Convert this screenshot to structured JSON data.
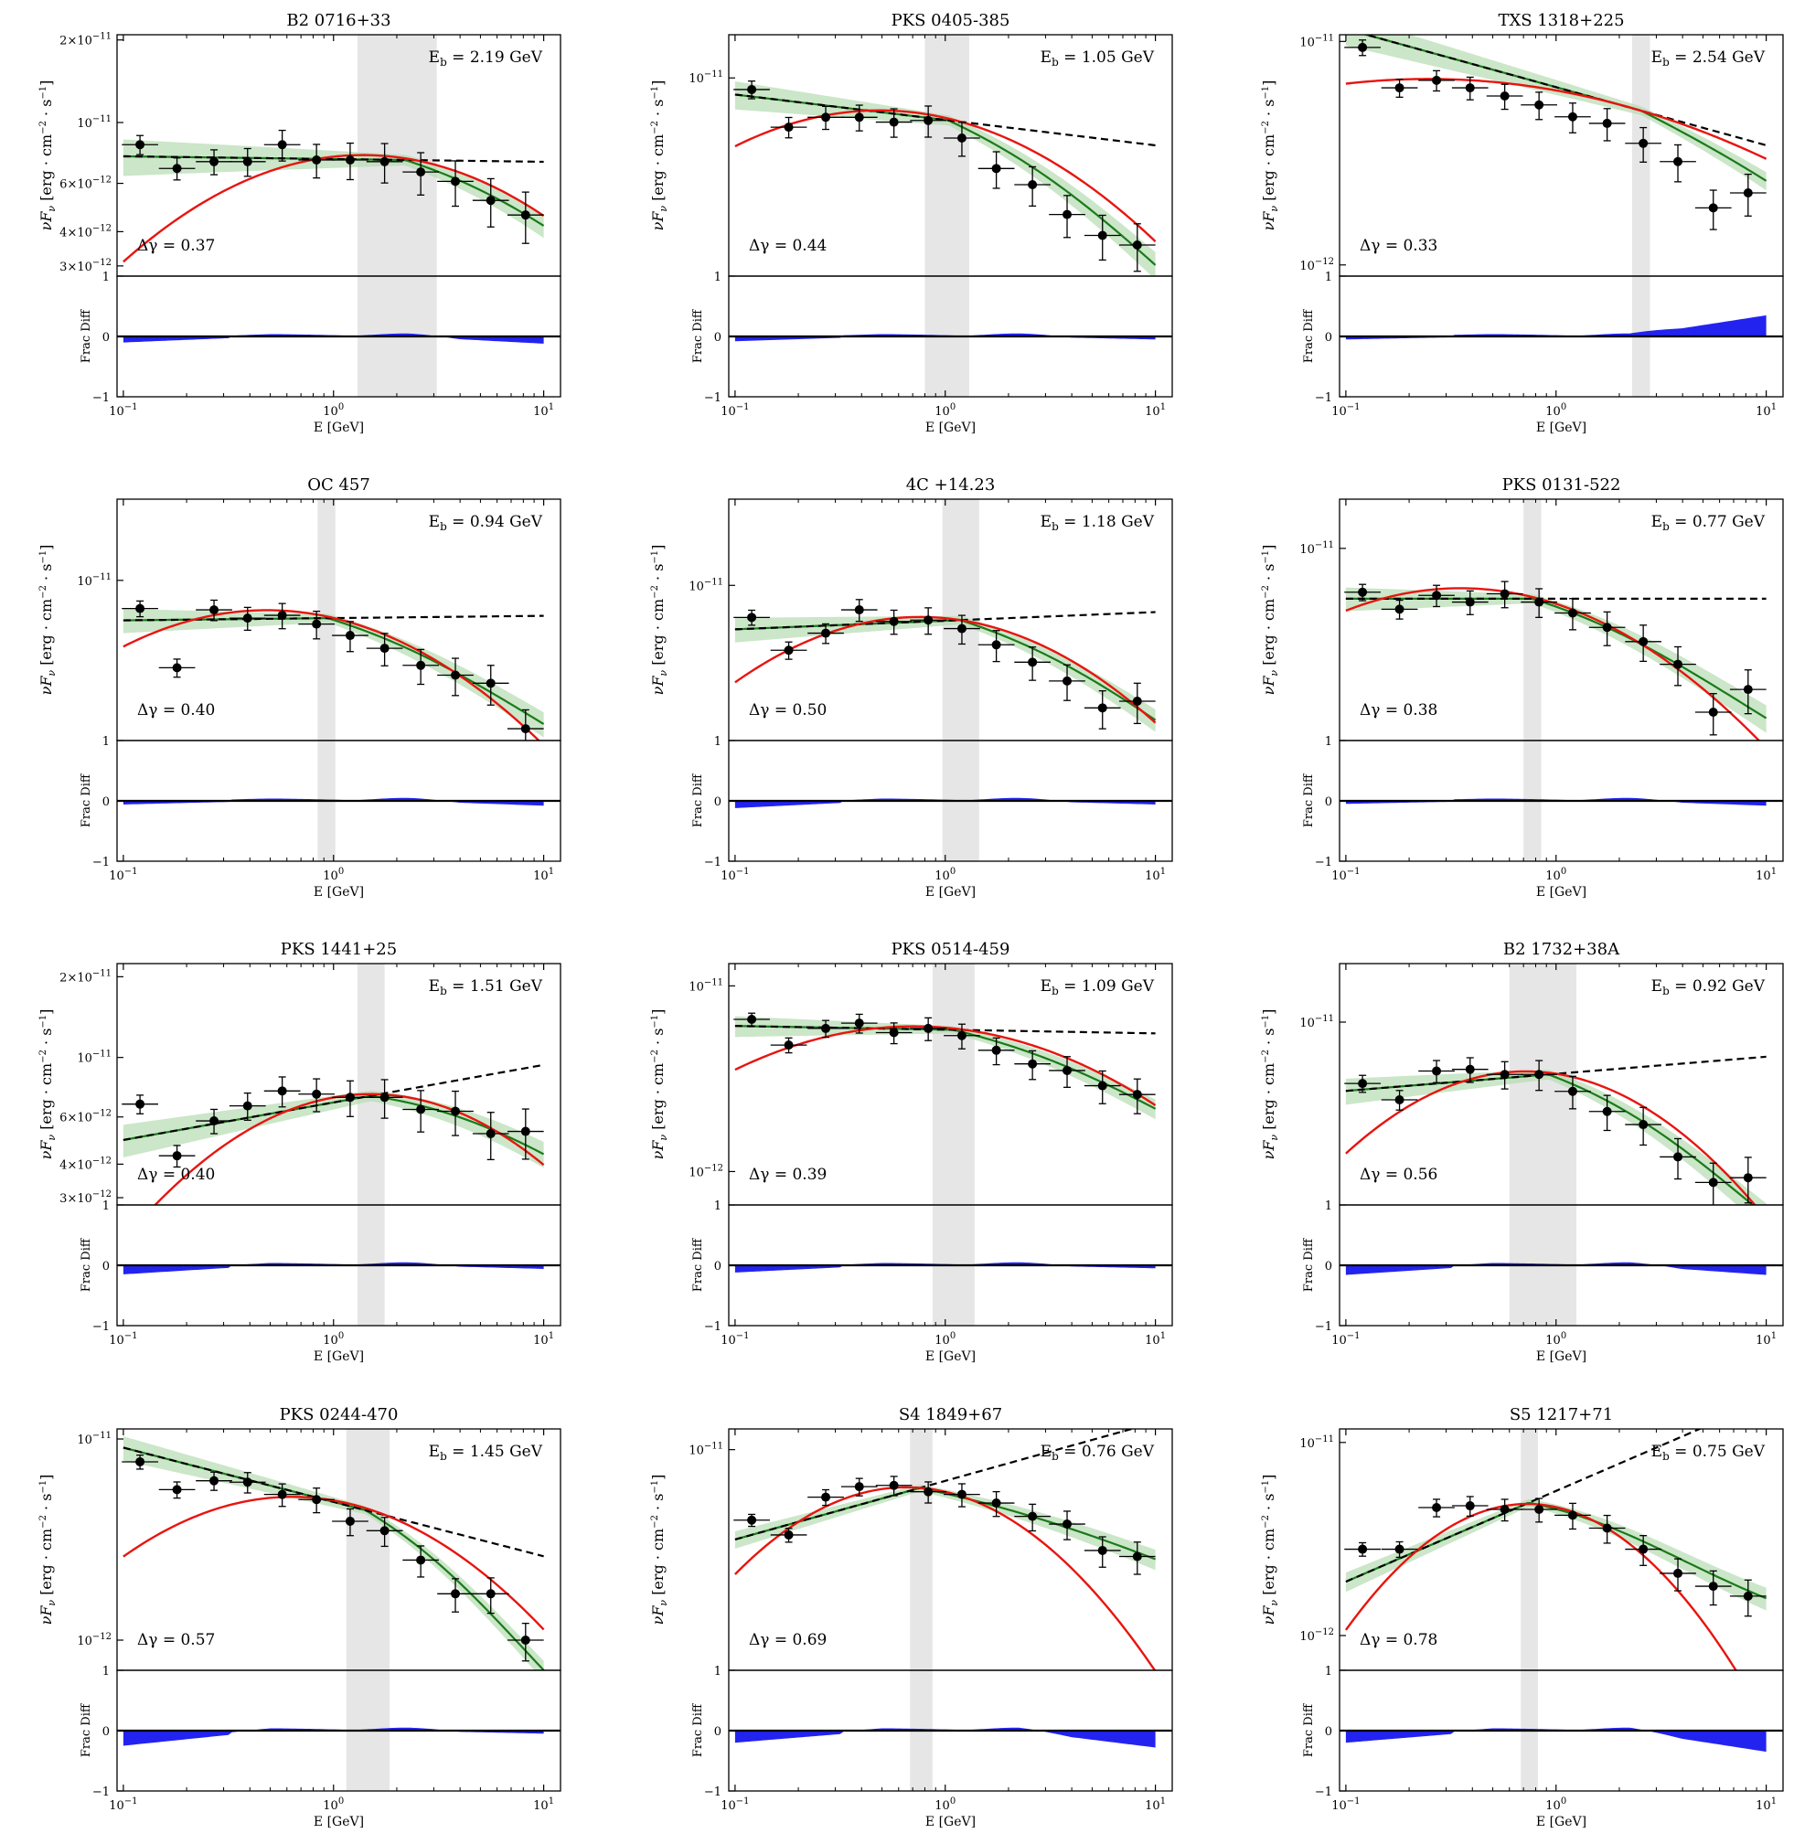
{
  "figure": {
    "x_label": "E [GeV]",
    "y_label_top": "νF",
    "y_label_sub": "ν",
    "y_label_unit": "[erg · cm",
    "y_label_exp2": "−2",
    "y_label_mid": " · s",
    "y_label_exp1": "−1",
    "y_label_close": "]",
    "resid_label": "Frac Diff",
    "eb_prefix": "E",
    "eb_sub": "b",
    "dg_prefix": "Δγ = "
  },
  "chart_data": [
    {
      "type": "line",
      "title": "B2 0716+33",
      "Eb": "2.19 GeV",
      "dgamma": "0.37",
      "eb_val": 2.19,
      "band": [
        1.3,
        3.1
      ],
      "ylog": [
        -11.56,
        -10.68
      ],
      "ylabels": [
        {
          "t": "2×10",
          "e": "−11",
          "v": 2e-11
        },
        {
          "t": "10",
          "e": "−11",
          "v": 1e-11
        },
        {
          "t": "6×10",
          "e": "−12",
          "v": 6e-12
        },
        {
          "t": "4×10",
          "e": "−12",
          "v": 4e-12
        },
        {
          "t": "3×10",
          "e": "−12",
          "v": 3e-12
        }
      ],
      "pts": [
        [
          0.12,
          8.3e-12
        ],
        [
          0.18,
          6.8e-12
        ],
        [
          0.27,
          7.2e-12
        ],
        [
          0.39,
          7.2e-12
        ],
        [
          0.57,
          8.3e-12
        ],
        [
          0.83,
          7.3e-12
        ],
        [
          1.2,
          7.3e-12
        ],
        [
          1.75,
          7.2e-12
        ],
        [
          2.6,
          6.6e-12
        ],
        [
          3.8,
          6.1e-12
        ],
        [
          5.6,
          5.2e-12
        ],
        [
          8.2,
          4.6e-12
        ]
      ],
      "plA": 7.3e-12,
      "plG": 0.01,
      "red": [
        7.4e-12,
        0.12,
        0.13
      ],
      "green": [
        7.3e-12,
        0.0,
        0.22
      ],
      "res": [
        0.1,
        0.12
      ]
    },
    {
      "type": "line",
      "title": "PKS 0405-385",
      "Eb": "1.05 GeV",
      "dgamma": "0.44",
      "eb_val": 1.05,
      "band": [
        0.8,
        1.3
      ],
      "ylog": [
        -11.78,
        -10.83
      ],
      "ylabels": [
        {
          "t": "10",
          "e": "−11",
          "v": 1e-11
        }
      ],
      "pts": [
        [
          0.12,
          9e-12
        ],
        [
          0.18,
          6.4e-12
        ],
        [
          0.27,
          7e-12
        ],
        [
          0.39,
          7e-12
        ],
        [
          0.57,
          6.7e-12
        ],
        [
          0.83,
          6.8e-12
        ],
        [
          1.2,
          5.8e-12
        ],
        [
          1.75,
          4.4e-12
        ],
        [
          2.6,
          3.8e-12
        ],
        [
          3.8,
          2.9e-12
        ],
        [
          5.6,
          2.4e-12
        ],
        [
          8.2,
          2.2e-12
        ]
      ],
      "plA": 6.8e-12,
      "plG": 0.1,
      "red": [
        6.9e-12,
        0.2,
        0.13
      ],
      "green": [
        6.7e-12,
        0.1,
        0.25
      ],
      "res": [
        0.08,
        0.05
      ]
    },
    {
      "type": "line",
      "title": "TXS 1318+225",
      "Eb": "2.54 GeV",
      "dgamma": "0.33",
      "eb_val": 2.54,
      "band": [
        2.3,
        2.8
      ],
      "ylog": [
        -12.05,
        -10.97
      ],
      "ylabels": [
        {
          "t": "10",
          "e": "−11",
          "v": 1e-11
        },
        {
          "t": "10",
          "e": "−12",
          "v": 1e-12
        }
      ],
      "pts": [
        [
          0.12,
          9.4e-12
        ],
        [
          0.18,
          6.2e-12
        ],
        [
          0.27,
          6.7e-12
        ],
        [
          0.39,
          6.2e-12
        ],
        [
          0.57,
          5.7e-12
        ],
        [
          0.83,
          5.2e-12
        ],
        [
          1.2,
          4.6e-12
        ],
        [
          1.75,
          4.3e-12
        ],
        [
          2.6,
          3.5e-12
        ],
        [
          3.8,
          2.9e-12
        ],
        [
          5.6,
          1.8e-12
        ],
        [
          8.2,
          2.1e-12
        ]
      ],
      "plA": 4.9e-12,
      "plG": 0.26,
      "red": [
        4.9e-12,
        0.28,
        0.06
      ],
      "green": [
        4.9e-12,
        0.26,
        0.12
      ],
      "res": [
        0.05,
        0.35
      ]
    },
    {
      "type": "line",
      "title": "OC 457",
      "Eb": "0.94 GeV",
      "dgamma": "0.40",
      "eb_val": 0.94,
      "band": [
        0.84,
        1.02
      ],
      "ylog": [
        -11.71,
        -10.64
      ],
      "ylabels": [
        {
          "t": "10",
          "e": "−11",
          "v": 1e-11
        }
      ],
      "pts": [
        [
          0.12,
          7.5e-12
        ],
        [
          0.18,
          4.1e-12
        ],
        [
          0.27,
          7.4e-12
        ],
        [
          0.39,
          6.8e-12
        ],
        [
          0.57,
          7e-12
        ],
        [
          0.83,
          6.4e-12
        ],
        [
          1.2,
          5.7e-12
        ],
        [
          1.75,
          5e-12
        ],
        [
          2.6,
          4.2e-12
        ],
        [
          3.8,
          3.8e-12
        ],
        [
          5.6,
          3.5e-12
        ],
        [
          8.2,
          2.2e-12
        ]
      ],
      "plA": 6.8e-12,
      "plG": -0.01,
      "red": [
        6.9e-12,
        0.2,
        0.15
      ],
      "green": [
        6.8e-12,
        0.1,
        0.22
      ],
      "res": [
        0.06,
        0.08
      ]
    },
    {
      "type": "line",
      "title": "4C +14.23",
      "Eb": "1.18 GeV",
      "dgamma": "0.50",
      "eb_val": 1.18,
      "band": [
        0.97,
        1.45
      ],
      "ylog": [
        -11.72,
        -10.6
      ],
      "ylabels": [
        {
          "t": "10",
          "e": "−11",
          "v": 1e-11
        }
      ],
      "pts": [
        [
          0.12,
          7.1e-12
        ],
        [
          0.18,
          5e-12
        ],
        [
          0.27,
          6e-12
        ],
        [
          0.39,
          7.7e-12
        ],
        [
          0.57,
          6.8e-12
        ],
        [
          0.83,
          6.9e-12
        ],
        [
          1.2,
          6.3e-12
        ],
        [
          1.75,
          5.3e-12
        ],
        [
          2.6,
          4.4e-12
        ],
        [
          3.8,
          3.6e-12
        ],
        [
          5.6,
          2.7e-12
        ],
        [
          8.2,
          2.9e-12
        ]
      ],
      "plA": 6.9e-12,
      "plG": -0.04,
      "red": [
        6.9e-12,
        0.15,
        0.17
      ],
      "green": [
        6.9e-12,
        0.05,
        0.25
      ],
      "res": [
        0.12,
        0.06
      ]
    },
    {
      "type": "line",
      "title": "PKS 0131-522",
      "Eb": "0.77 GeV",
      "dgamma": "0.38",
      "eb_val": 0.77,
      "band": [
        0.7,
        0.85
      ],
      "ylog": [
        -11.82,
        -10.79
      ],
      "ylabels": [
        {
          "t": "10",
          "e": "−11",
          "v": 1e-11
        }
      ],
      "pts": [
        [
          0.12,
          6.5e-12
        ],
        [
          0.18,
          5.5e-12
        ],
        [
          0.27,
          6.3e-12
        ],
        [
          0.39,
          5.9e-12
        ],
        [
          0.57,
          6.4e-12
        ],
        [
          0.83,
          5.9e-12
        ],
        [
          1.2,
          5.3e-12
        ],
        [
          1.75,
          4.6e-12
        ],
        [
          2.6,
          4e-12
        ],
        [
          3.8,
          3.2e-12
        ],
        [
          5.6,
          2e-12
        ],
        [
          8.2,
          2.5e-12
        ]
      ],
      "plA": 6.1e-12,
      "plG": 0.0,
      "red": [
        6.2e-12,
        0.22,
        0.14
      ],
      "green": [
        6.1e-12,
        0.1,
        0.22
      ],
      "res": [
        0.05,
        0.08
      ]
    },
    {
      "type": "line",
      "title": "PKS 1441+25",
      "Eb": "1.51 GeV",
      "dgamma": "0.40",
      "eb_val": 1.51,
      "band": [
        1.3,
        1.75
      ],
      "ylog": [
        -11.55,
        -10.65
      ],
      "ylabels": [
        {
          "t": "2×10",
          "e": "−11",
          "v": 2e-11
        },
        {
          "t": "10",
          "e": "−11",
          "v": 1e-11
        },
        {
          "t": "6×10",
          "e": "−12",
          "v": 6e-12
        },
        {
          "t": "4×10",
          "e": "−12",
          "v": 4e-12
        },
        {
          "t": "3×10",
          "e": "−12",
          "v": 3e-12
        }
      ],
      "pts": [
        [
          0.12,
          6.7e-12
        ],
        [
          0.18,
          4.3e-12
        ],
        [
          0.27,
          5.8e-12
        ],
        [
          0.39,
          6.6e-12
        ],
        [
          0.57,
          7.5e-12
        ],
        [
          0.83,
          7.3e-12
        ],
        [
          1.2,
          7.1e-12
        ],
        [
          1.75,
          7.1e-12
        ],
        [
          2.6,
          6.4e-12
        ],
        [
          3.8,
          6.3e-12
        ],
        [
          5.6,
          5.2e-12
        ],
        [
          8.2,
          5.3e-12
        ]
      ],
      "plA": 7.2e-12,
      "plG": -0.14,
      "red": [
        7.3e-12,
        0.0,
        0.17
      ],
      "green": [
        7.2e-12,
        -0.14,
        0.22
      ],
      "res": [
        0.15,
        0.06
      ]
    },
    {
      "type": "line",
      "title": "PKS 0514-459",
      "Eb": "1.09 GeV",
      "dgamma": "0.39",
      "eb_val": 1.09,
      "band": [
        0.87,
        1.38
      ],
      "ylog": [
        -12.18,
        -10.88
      ],
      "ylabels": [
        {
          "t": "10",
          "e": "−11",
          "v": 1e-11
        },
        {
          "t": "10",
          "e": "−12",
          "v": 1e-12
        }
      ],
      "pts": [
        [
          0.12,
          6.6e-12
        ],
        [
          0.18,
          4.8e-12
        ],
        [
          0.27,
          5.9e-12
        ],
        [
          0.39,
          6.3e-12
        ],
        [
          0.57,
          5.6e-12
        ],
        [
          0.83,
          5.9e-12
        ],
        [
          1.2,
          5.4e-12
        ],
        [
          1.75,
          4.5e-12
        ],
        [
          2.6,
          3.8e-12
        ],
        [
          3.8,
          3.5e-12
        ],
        [
          5.6,
          2.9e-12
        ],
        [
          8.2,
          2.6e-12
        ]
      ],
      "plA": 5.8e-12,
      "plG": 0.02,
      "red": [
        5.9e-12,
        0.12,
        0.14
      ],
      "green": [
        5.8e-12,
        0.02,
        0.22
      ],
      "res": [
        0.12,
        0.05
      ]
    },
    {
      "type": "line",
      "title": "B2 1732+38A",
      "Eb": "0.92 GeV",
      "dgamma": "0.56",
      "eb_val": 0.92,
      "band": [
        0.6,
        1.25
      ],
      "ylog": [
        -11.75,
        -10.76
      ],
      "ylabels": [
        {
          "t": "10",
          "e": "−11",
          "v": 1e-11
        }
      ],
      "pts": [
        [
          0.12,
          5.6e-12
        ],
        [
          0.18,
          4.8e-12
        ],
        [
          0.27,
          6.3e-12
        ],
        [
          0.39,
          6.4e-12
        ],
        [
          0.57,
          6.1e-12
        ],
        [
          0.83,
          6.1e-12
        ],
        [
          1.2,
          5.2e-12
        ],
        [
          1.75,
          4.3e-12
        ],
        [
          2.6,
          3.8e-12
        ],
        [
          3.8,
          2.8e-12
        ],
        [
          5.6,
          2.2e-12
        ],
        [
          8.2,
          2.3e-12
        ]
      ],
      "plA": 6.1e-12,
      "plG": -0.07,
      "red": [
        6.2e-12,
        0.1,
        0.2
      ],
      "green": [
        6.1e-12,
        0.02,
        0.3
      ],
      "res": [
        0.16,
        0.16
      ]
    },
    {
      "type": "line",
      "title": "PKS 0244-470",
      "Eb": "1.45 GeV",
      "dgamma": "0.57",
      "eb_val": 1.45,
      "band": [
        1.15,
        1.85
      ],
      "ylog": [
        -12.15,
        -10.95
      ],
      "ylabels": [
        {
          "t": "10",
          "e": "−11",
          "v": 1e-11
        },
        {
          "t": "10",
          "e": "−12",
          "v": 1e-12
        }
      ],
      "pts": [
        [
          0.12,
          7.7e-12
        ],
        [
          0.18,
          5.6e-12
        ],
        [
          0.27,
          6.2e-12
        ],
        [
          0.39,
          6.1e-12
        ],
        [
          0.57,
          5.3e-12
        ],
        [
          0.83,
          5e-12
        ],
        [
          1.2,
          3.9e-12
        ],
        [
          1.75,
          3.5e-12
        ],
        [
          2.6,
          2.5e-12
        ],
        [
          3.8,
          1.7e-12
        ],
        [
          5.6,
          1.7e-12
        ],
        [
          8.2,
          1e-12
        ]
      ],
      "plA": 4.4e-12,
      "plG": 0.27,
      "red": [
        4.5e-12,
        0.33,
        0.2
      ],
      "green": [
        4.3e-12,
        0.25,
        0.5
      ],
      "res": [
        0.25,
        0.05
      ]
    },
    {
      "type": "line",
      "title": "S4 1849+67",
      "Eb": "0.76 GeV",
      "dgamma": "0.69",
      "eb_val": 0.76,
      "band": [
        0.68,
        0.87
      ],
      "ylog": [
        -12.28,
        -10.88
      ],
      "ylabels": [
        {
          "t": "10",
          "e": "−11",
          "v": 1e-11
        }
      ],
      "pts": [
        [
          0.12,
          3.9e-12
        ],
        [
          0.18,
          3.2e-12
        ],
        [
          0.27,
          5.3e-12
        ],
        [
          0.39,
          6.1e-12
        ],
        [
          0.57,
          6.2e-12
        ],
        [
          0.83,
          5.7e-12
        ],
        [
          1.2,
          5.5e-12
        ],
        [
          1.75,
          4.9e-12
        ],
        [
          2.6,
          4.1e-12
        ],
        [
          3.8,
          3.7e-12
        ],
        [
          5.6,
          2.6e-12
        ],
        [
          8.2,
          2.4e-12
        ]
      ],
      "plA": 6e-12,
      "plG": -0.34,
      "red": [
        6e-12,
        0.1,
        0.33
      ],
      "green": [
        6e-12,
        0.1,
        0.12
      ],
      "res": [
        0.2,
        0.28
      ]
    },
    {
      "type": "line",
      "title": "S5 1217+71",
      "Eb": "0.75 GeV",
      "dgamma": "0.78",
      "eb_val": 0.75,
      "band": [
        0.68,
        0.82
      ],
      "ylog": [
        -12.18,
        -10.93
      ],
      "ylabels": [
        {
          "t": "10",
          "e": "−11",
          "v": 1e-11
        },
        {
          "t": "10",
          "e": "−12",
          "v": 1e-12
        }
      ],
      "pts": [
        [
          0.12,
          2.8e-12
        ],
        [
          0.18,
          2.8e-12
        ],
        [
          0.27,
          4.6e-12
        ],
        [
          0.39,
          4.7e-12
        ],
        [
          0.57,
          4.5e-12
        ],
        [
          0.83,
          4.5e-12
        ],
        [
          1.2,
          4.2e-12
        ],
        [
          1.75,
          3.6e-12
        ],
        [
          2.6,
          2.8e-12
        ],
        [
          3.8,
          2.1e-12
        ],
        [
          5.6,
          1.8e-12
        ],
        [
          8.2,
          1.6e-12
        ]
      ],
      "plA": 4.9e-12,
      "plG": -0.47,
      "red": [
        4.8e-12,
        0.02,
        0.38
      ],
      "green": [
        4.8e-12,
        0.05,
        0.36
      ],
      "res": [
        0.2,
        0.35
      ]
    }
  ]
}
